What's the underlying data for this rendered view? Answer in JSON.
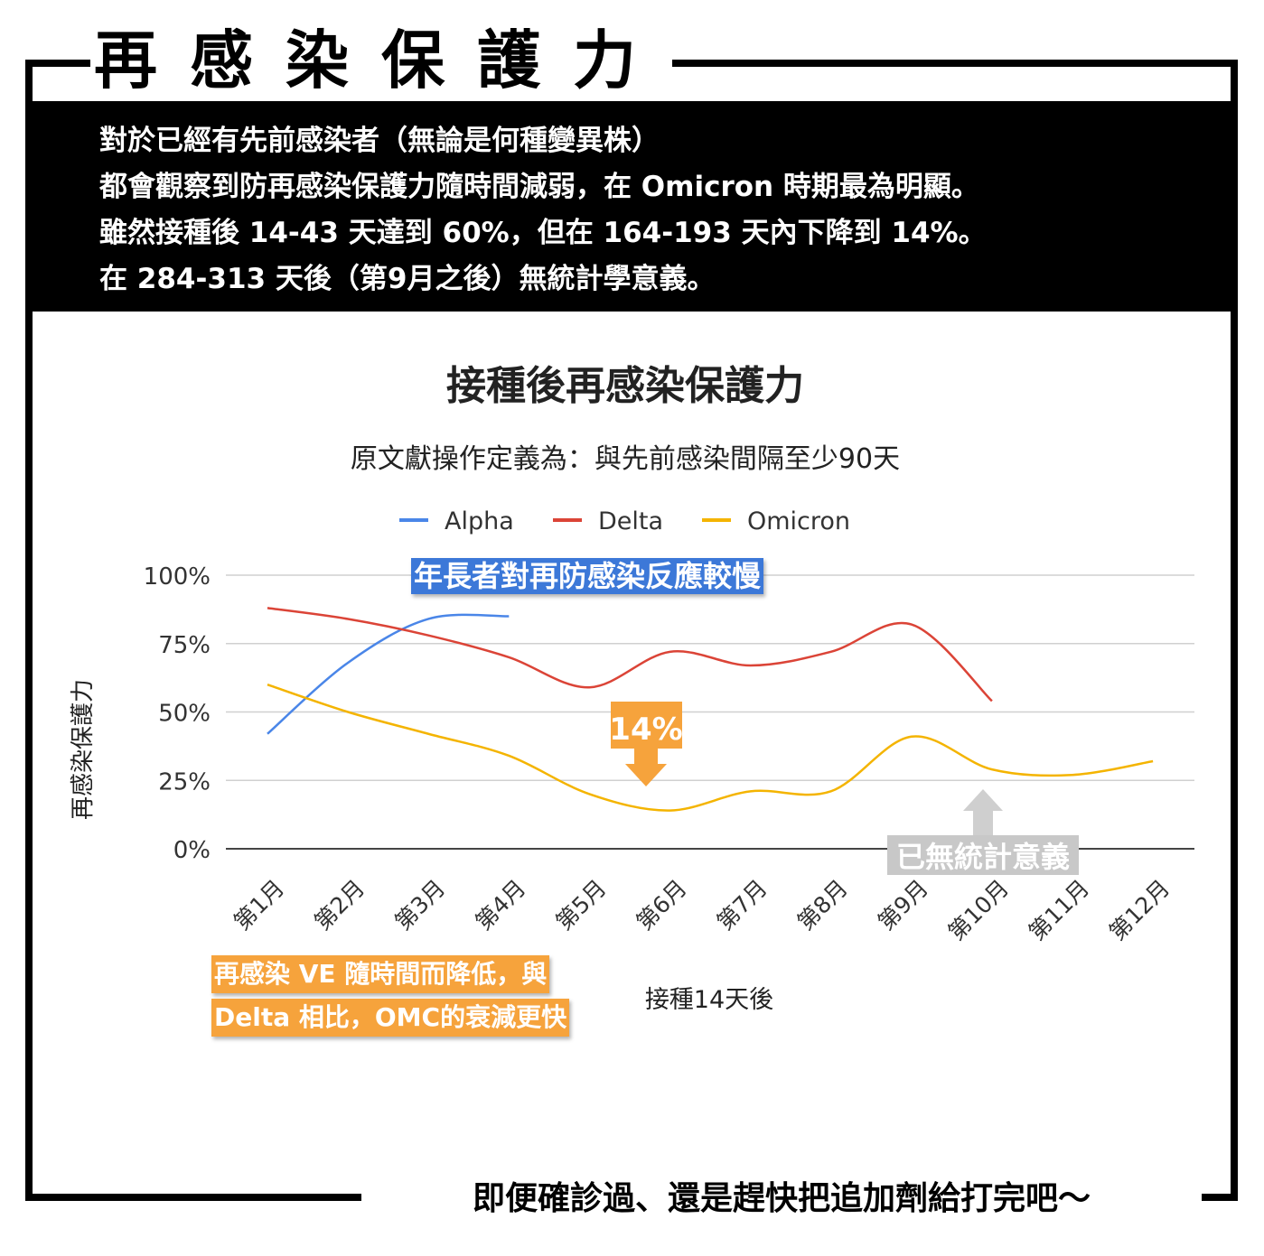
{
  "header": {
    "title": "再感染保護力"
  },
  "summary": [
    "對於已經有先前感染者（無論是何種變異株）",
    "都會觀察到防再感染保護力隨時間減弱，在 Omicron 時期最為明顯。",
    "雖然接種後 14-43 天達到 60%，但在 164-193 天內下降到 14%。",
    "在 284-313 天後（第9月之後）無統計學意義。"
  ],
  "annotations": {
    "elderly": "年長者對再防感染反應較慢",
    "low_point": "14%",
    "not_significant": "已無統計意義",
    "decline_line1": "再感染 VE 隨時間而降低，與",
    "decline_line2": "Delta 相比，OMC的衰減更快"
  },
  "footer": {
    "text": "即便確診過、還是趕快把追加劑給打完吧～"
  },
  "colors": {
    "alpha": "#4a86e8",
    "delta": "#db4437",
    "omicron": "#f4b400",
    "note_blue": "#3c78d8",
    "note_orange": "#f6a33c",
    "note_gray": "#c8c8c8"
  },
  "chart_data": {
    "type": "line",
    "title": "接種後再感染保護力",
    "subtitle": "原文獻操作定義為：與先前感染間隔至少90天",
    "xlabel": "接種14天後",
    "ylabel": "再感染保護力",
    "categories": [
      "第1月",
      "第2月",
      "第3月",
      "第4月",
      "第5月",
      "第6月",
      "第7月",
      "第8月",
      "第9月",
      "第10月",
      "第11月",
      "第12月"
    ],
    "yticks": [
      "0%",
      "25%",
      "50%",
      "75%",
      "100%"
    ],
    "ylim": [
      0,
      100
    ],
    "grid": true,
    "legend": "top",
    "series": [
      {
        "name": "Alpha",
        "values": [
          42,
          68,
          84,
          85,
          null,
          null,
          null,
          null,
          null,
          null,
          null,
          null
        ]
      },
      {
        "name": "Delta",
        "values": [
          88,
          84,
          78,
          70,
          59,
          72,
          67,
          72,
          82,
          54,
          null,
          null
        ]
      },
      {
        "name": "Omicron",
        "values": [
          60,
          50,
          42,
          34,
          20,
          14,
          21,
          21,
          41,
          29,
          27,
          32
        ]
      }
    ]
  }
}
